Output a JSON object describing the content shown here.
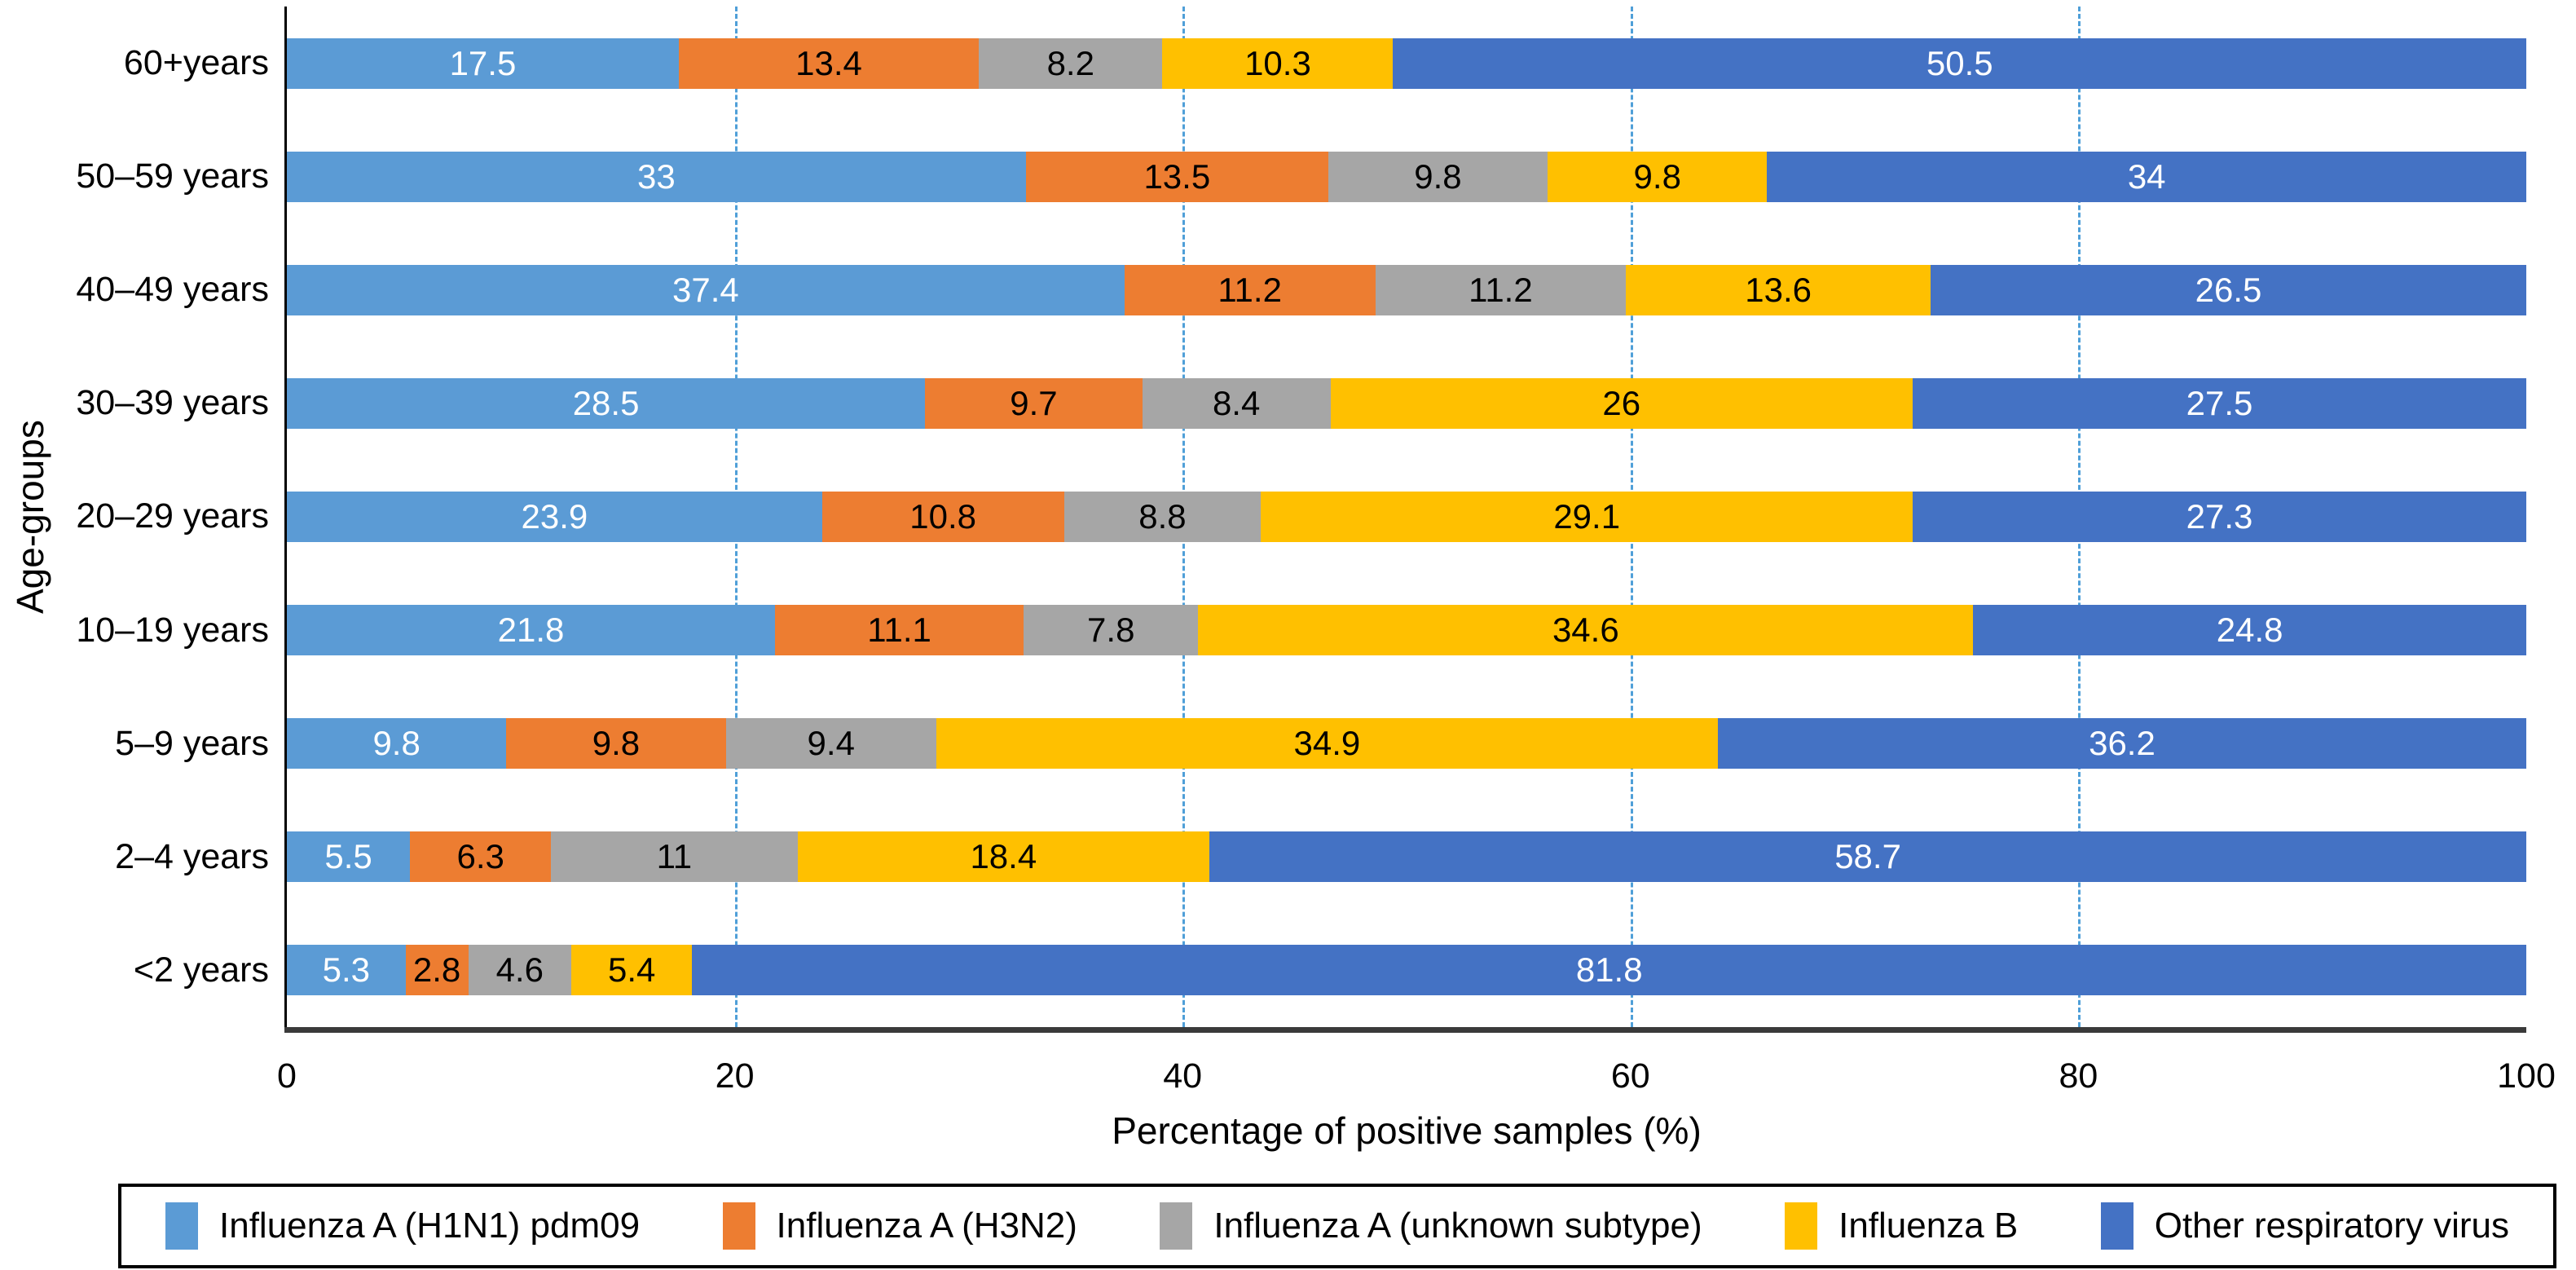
{
  "chart_data": {
    "type": "bar",
    "orientation": "horizontal",
    "stacked": true,
    "title": "",
    "xlabel": "Percentage of positive samples (%)",
    "ylabel": "Age-groups",
    "xlim": [
      0,
      100
    ],
    "x_ticks": [
      "0",
      "20",
      "40",
      "60",
      "80",
      "100"
    ],
    "x_tick_values": [
      0,
      20,
      40,
      60,
      80,
      100
    ],
    "gridlines_at": [
      20,
      40,
      60,
      80
    ],
    "gridline_color": "#4f9fd8",
    "grid": "vertical-dashed",
    "legend_position": "bottom",
    "categories": [
      "60+years",
      "50–59 years",
      "40–49 years",
      "30–39 years",
      "20–29 years",
      "10–19 years",
      "5–9 years",
      "2–4 years",
      "<2 years"
    ],
    "series": [
      {
        "name": "Influenza A (H1N1) pdm09",
        "color": "#5B9BD5",
        "label_color": "#FFFFFF",
        "values": [
          17.5,
          33,
          37.4,
          28.5,
          23.9,
          21.8,
          9.8,
          5.5,
          5.3
        ],
        "labels": [
          "17.5",
          "33",
          "37.4",
          "28.5",
          "23.9",
          "21.8",
          "9.8",
          "5.5",
          "5.3"
        ]
      },
      {
        "name": "Influenza A (H3N2)",
        "color": "#ED7D31",
        "label_color": "#000000",
        "values": [
          13.4,
          13.5,
          11.2,
          9.7,
          10.8,
          11.1,
          9.8,
          6.3,
          2.8
        ],
        "labels": [
          "13.4",
          "13.5",
          "11.2",
          "9.7",
          "10.8",
          "11.1",
          "9.8",
          "6.3",
          "2.8"
        ]
      },
      {
        "name": "Influenza A (unknown subtype)",
        "color": "#A6A6A6",
        "label_color": "#000000",
        "values": [
          8.2,
          9.8,
          11.2,
          8.4,
          8.8,
          7.8,
          9.4,
          11,
          4.6
        ],
        "labels": [
          "8.2",
          "9.8",
          "11.2",
          "8.4",
          "8.8",
          "7.8",
          "9.4",
          "11",
          "4.6"
        ]
      },
      {
        "name": "Influenza B",
        "color": "#FFC000",
        "label_color": "#000000",
        "values": [
          10.3,
          9.8,
          13.6,
          26,
          29.1,
          34.6,
          34.9,
          18.4,
          5.4
        ],
        "labels": [
          "10.3",
          "9.8",
          "13.6",
          "26",
          "29.1",
          "34.6",
          "34.9",
          "18.4",
          "5.4"
        ]
      },
      {
        "name": "Other respiratory virus",
        "color": "#4472C4",
        "label_color": "#FFFFFF",
        "values": [
          50.5,
          34,
          26.5,
          27.5,
          27.3,
          24.8,
          36.2,
          58.7,
          81.8
        ],
        "labels": [
          "50.5",
          "34",
          "26.5",
          "27.5",
          "27.3",
          "24.8",
          "36.2",
          "58.7",
          "81.8"
        ]
      }
    ],
    "axis_colors": {
      "y_axis_line": "#000000",
      "x_axis_line": "#3a3a3a"
    }
  }
}
